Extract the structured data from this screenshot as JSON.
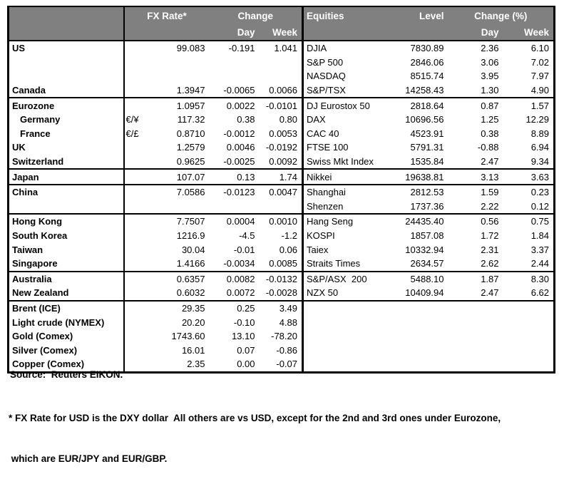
{
  "colors": {
    "header_bg": "#808080",
    "header_text": "#ffffff",
    "border": "#000000",
    "body_bg": "#ffffff",
    "text": "#000000"
  },
  "table": {
    "header": {
      "fx_rate": "FX Rate*",
      "fx_change": "Change",
      "fx_day": "Day",
      "fx_week": "Week",
      "equities": "Equities",
      "level": "Level",
      "eq_change": "Change (%)",
      "eq_day": "Day",
      "eq_week": "Week"
    },
    "rows": [
      {
        "name": "US",
        "indent": false,
        "pair": "",
        "fx_rate": "99.083",
        "fx_day": "-0.191",
        "fx_week": "1.041",
        "eq_name": "DJIA",
        "eq_level": "7830.89",
        "eq_day": "2.36",
        "eq_week": "6.10",
        "group_start": false
      },
      {
        "name": "",
        "indent": false,
        "pair": "",
        "fx_rate": "",
        "fx_day": "",
        "fx_week": "",
        "eq_name": "S&P 500",
        "eq_level": "2846.06",
        "eq_day": "3.06",
        "eq_week": "7.02",
        "group_start": false
      },
      {
        "name": "",
        "indent": false,
        "pair": "",
        "fx_rate": "",
        "fx_day": "",
        "fx_week": "",
        "eq_name": "NASDAQ",
        "eq_level": "8515.74",
        "eq_day": "3.95",
        "eq_week": "7.97",
        "group_start": false
      },
      {
        "name": "Canada",
        "indent": false,
        "pair": "",
        "fx_rate": "1.3947",
        "fx_day": "-0.0065",
        "fx_week": "0.0066",
        "eq_name": "S&P/TSX",
        "eq_level": "14258.43",
        "eq_day": "1.30",
        "eq_week": "4.90",
        "group_start": false
      },
      {
        "name": "Eurozone",
        "indent": false,
        "pair": "",
        "fx_rate": "1.0957",
        "fx_day": "0.0022",
        "fx_week": "-0.0101",
        "eq_name": "DJ Eurostox 50",
        "eq_level": "2818.64",
        "eq_day": "0.87",
        "eq_week": "1.57",
        "group_start": true
      },
      {
        "name": "Germany",
        "indent": true,
        "pair": "€/¥",
        "fx_rate": "117.32",
        "fx_day": "0.38",
        "fx_week": "0.80",
        "eq_name": "DAX",
        "eq_level": "10696.56",
        "eq_day": "1.25",
        "eq_week": "12.29",
        "group_start": false
      },
      {
        "name": "France",
        "indent": true,
        "pair": "€/£",
        "fx_rate": "0.8710",
        "fx_day": "-0.0012",
        "fx_week": "0.0053",
        "eq_name": "CAC 40",
        "eq_level": "4523.91",
        "eq_day": "0.38",
        "eq_week": "8.89",
        "group_start": false
      },
      {
        "name": "UK",
        "indent": false,
        "pair": "",
        "fx_rate": "1.2579",
        "fx_day": "0.0046",
        "fx_week": "-0.0192",
        "eq_name": "FTSE 100",
        "eq_level": "5791.31",
        "eq_day": "-0.88",
        "eq_week": "6.94",
        "group_start": false
      },
      {
        "name": "Switzerland",
        "indent": false,
        "pair": "",
        "fx_rate": "0.9625",
        "fx_day": "-0.0025",
        "fx_week": "0.0092",
        "eq_name": "Swiss Mkt Index",
        "eq_level": "1535.84",
        "eq_day": "2.47",
        "eq_week": "9.34",
        "group_start": false
      },
      {
        "name": "Japan",
        "indent": false,
        "pair": "",
        "fx_rate": "107.07",
        "fx_day": "0.13",
        "fx_week": "1.74",
        "eq_name": "Nikkei",
        "eq_level": "19638.81",
        "eq_day": "3.13",
        "eq_week": "3.63",
        "group_start": true
      },
      {
        "name": "China",
        "indent": false,
        "pair": "",
        "fx_rate": "7.0586",
        "fx_day": "-0.0123",
        "fx_week": "0.0047",
        "eq_name": "Shanghai",
        "eq_level": "2812.53",
        "eq_day": "1.59",
        "eq_week": "0.23",
        "group_start": true
      },
      {
        "name": "",
        "indent": false,
        "pair": "",
        "fx_rate": "",
        "fx_day": "",
        "fx_week": "",
        "eq_name": "Shenzen",
        "eq_level": "1737.36",
        "eq_day": "2.22",
        "eq_week": "0.12",
        "group_start": false
      },
      {
        "name": "Hong Kong",
        "indent": false,
        "pair": "",
        "fx_rate": "7.7507",
        "fx_day": "0.0004",
        "fx_week": "0.0010",
        "eq_name": "Hang Seng",
        "eq_level": "24435.40",
        "eq_day": "0.56",
        "eq_week": "0.75",
        "group_start": true
      },
      {
        "name": "South Korea",
        "indent": false,
        "pair": "",
        "fx_rate": "1216.9",
        "fx_day": "-4.5",
        "fx_week": "-1.2",
        "eq_name": "KOSPI",
        "eq_level": "1857.08",
        "eq_day": "1.72",
        "eq_week": "1.84",
        "group_start": false
      },
      {
        "name": "Taiwan",
        "indent": false,
        "pair": "",
        "fx_rate": "30.04",
        "fx_day": "-0.01",
        "fx_week": "0.06",
        "eq_name": "Taiex",
        "eq_level": "10332.94",
        "eq_day": "2.31",
        "eq_week": "3.37",
        "group_start": false
      },
      {
        "name": "Singapore",
        "indent": false,
        "pair": "",
        "fx_rate": "1.4166",
        "fx_day": "-0.0034",
        "fx_week": "0.0085",
        "eq_name": "Straits Times",
        "eq_level": "2634.57",
        "eq_day": "2.62",
        "eq_week": "2.44",
        "group_start": false
      },
      {
        "name": "Australia",
        "indent": false,
        "pair": "",
        "fx_rate": "0.6357",
        "fx_day": "0.0082",
        "fx_week": "-0.0132",
        "eq_name": "S&P/ASX  200",
        "eq_level": "5488.10",
        "eq_day": "1.87",
        "eq_week": "8.30",
        "group_start": true
      },
      {
        "name": "New Zealand",
        "indent": false,
        "pair": "",
        "fx_rate": "0.6032",
        "fx_day": "0.0072",
        "fx_week": "-0.0028",
        "eq_name": "NZX 50",
        "eq_level": "10409.94",
        "eq_day": "2.47",
        "eq_week": "6.62",
        "group_start": false
      },
      {
        "name": "Brent (ICE)",
        "indent": false,
        "pair": "",
        "fx_rate": "29.35",
        "fx_day": "0.25",
        "fx_week": "3.49",
        "eq_name": "",
        "eq_level": "",
        "eq_day": "",
        "eq_week": "",
        "group_start": true
      },
      {
        "name": "Light crude (NYMEX)",
        "indent": false,
        "pair": "",
        "fx_rate": "20.20",
        "fx_day": "-0.10",
        "fx_week": "4.88",
        "eq_name": "",
        "eq_level": "",
        "eq_day": "",
        "eq_week": "",
        "group_start": false
      },
      {
        "name": "Gold (Comex)",
        "indent": false,
        "pair": "",
        "fx_rate": "1743.60",
        "fx_day": "13.10",
        "fx_week": "-78.20",
        "eq_name": "",
        "eq_level": "",
        "eq_day": "",
        "eq_week": "",
        "group_start": false
      },
      {
        "name": "Silver (Comex)",
        "indent": false,
        "pair": "",
        "fx_rate": "16.01",
        "fx_day": "0.07",
        "fx_week": "-0.86",
        "eq_name": "",
        "eq_level": "",
        "eq_day": "",
        "eq_week": "",
        "group_start": false
      },
      {
        "name": "Copper (Comex)",
        "indent": false,
        "pair": "",
        "fx_rate": "2.35",
        "fx_day": "0.00",
        "fx_week": "-0.07",
        "eq_name": "",
        "eq_level": "",
        "eq_day": "",
        "eq_week": "",
        "group_start": false
      }
    ]
  },
  "footer": {
    "source": "Source:  Reuters EIKON.",
    "note_line1": "* FX Rate for USD is the DXY dollar  All others are vs USD, except for the 2nd and 3rd ones under Eurozone,",
    "note_line2": " which are EUR/JPY and EUR/GBP."
  }
}
